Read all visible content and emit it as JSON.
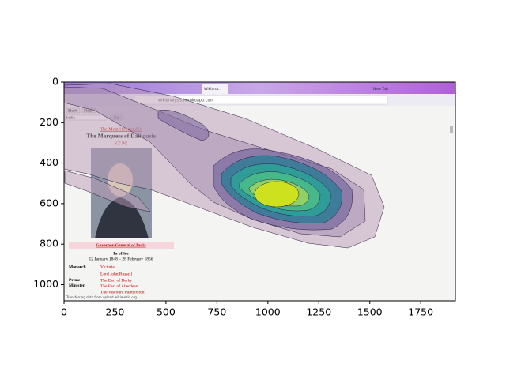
{
  "chart_data": {
    "type": "contour",
    "xlim": [
      0,
      1920
    ],
    "ylim": [
      1080,
      0
    ],
    "xticks": [
      0,
      250,
      500,
      750,
      1000,
      1250,
      1500,
      1750
    ],
    "yticks": [
      0,
      200,
      400,
      600,
      800,
      1000
    ],
    "screenshot": {
      "url": "wikianalysis.herokuapp.com",
      "tabs": [
        "Wikiana...",
        "New Tab"
      ],
      "controls": [
        "Start",
        "Stop",
        "India",
        "Go"
      ],
      "infobox": {
        "honorific": "The Most Honourable",
        "name": "The Marquess of Dalhousie",
        "postnominals": "KT PC",
        "office": "Governor-General of India",
        "in_office": "In office",
        "dates": "12 January 1848 – 28 February 1856",
        "monarch_label": "Monarch",
        "monarch": "Victoria",
        "pm_label_1": "Prime",
        "pm_label_2": "Minister",
        "pms": [
          "Lord John Russell",
          "The Earl of Derby",
          "The Earl of Aberdeen",
          "The Viscount Palmerston"
        ]
      },
      "status": "Transferring data from upload.wikimedia.org..."
    }
  }
}
